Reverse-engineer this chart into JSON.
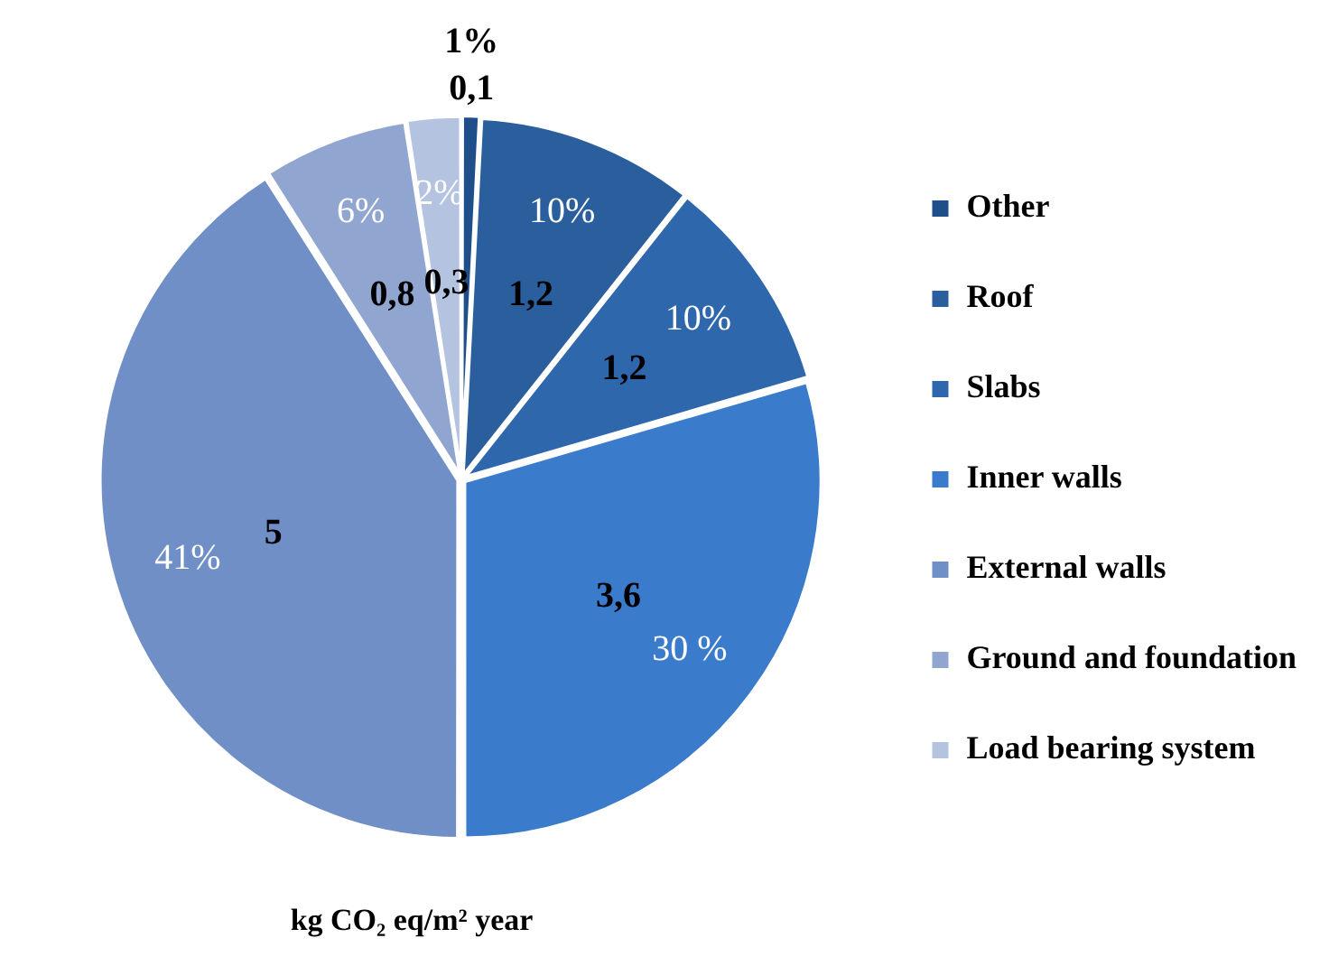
{
  "chart_data": {
    "type": "pie",
    "xlabel": "kg CO₂ eq/m² year",
    "categories": [
      "Other",
      "Roof",
      "Slabs",
      "Inner walls",
      "External walls",
      "Ground and foundation",
      "Load bearing system"
    ],
    "values": [
      0.1,
      1.2,
      1.2,
      3.6,
      5,
      0.8,
      0.3
    ],
    "colors": [
      "#1f4f8a",
      "#2b5e9c",
      "#2f67ad",
      "#3a7bcb",
      "#6f8fc6",
      "#90a6d0",
      "#b3c3e0"
    ],
    "value_labels": [
      "0,1",
      "1,2",
      "1,2",
      "3,6",
      "5",
      "0,8",
      "0,3"
    ],
    "annotations": [
      "1%",
      "10%",
      "10%",
      "30 %",
      "41%",
      "6%",
      "2%"
    ],
    "legend": "right"
  }
}
